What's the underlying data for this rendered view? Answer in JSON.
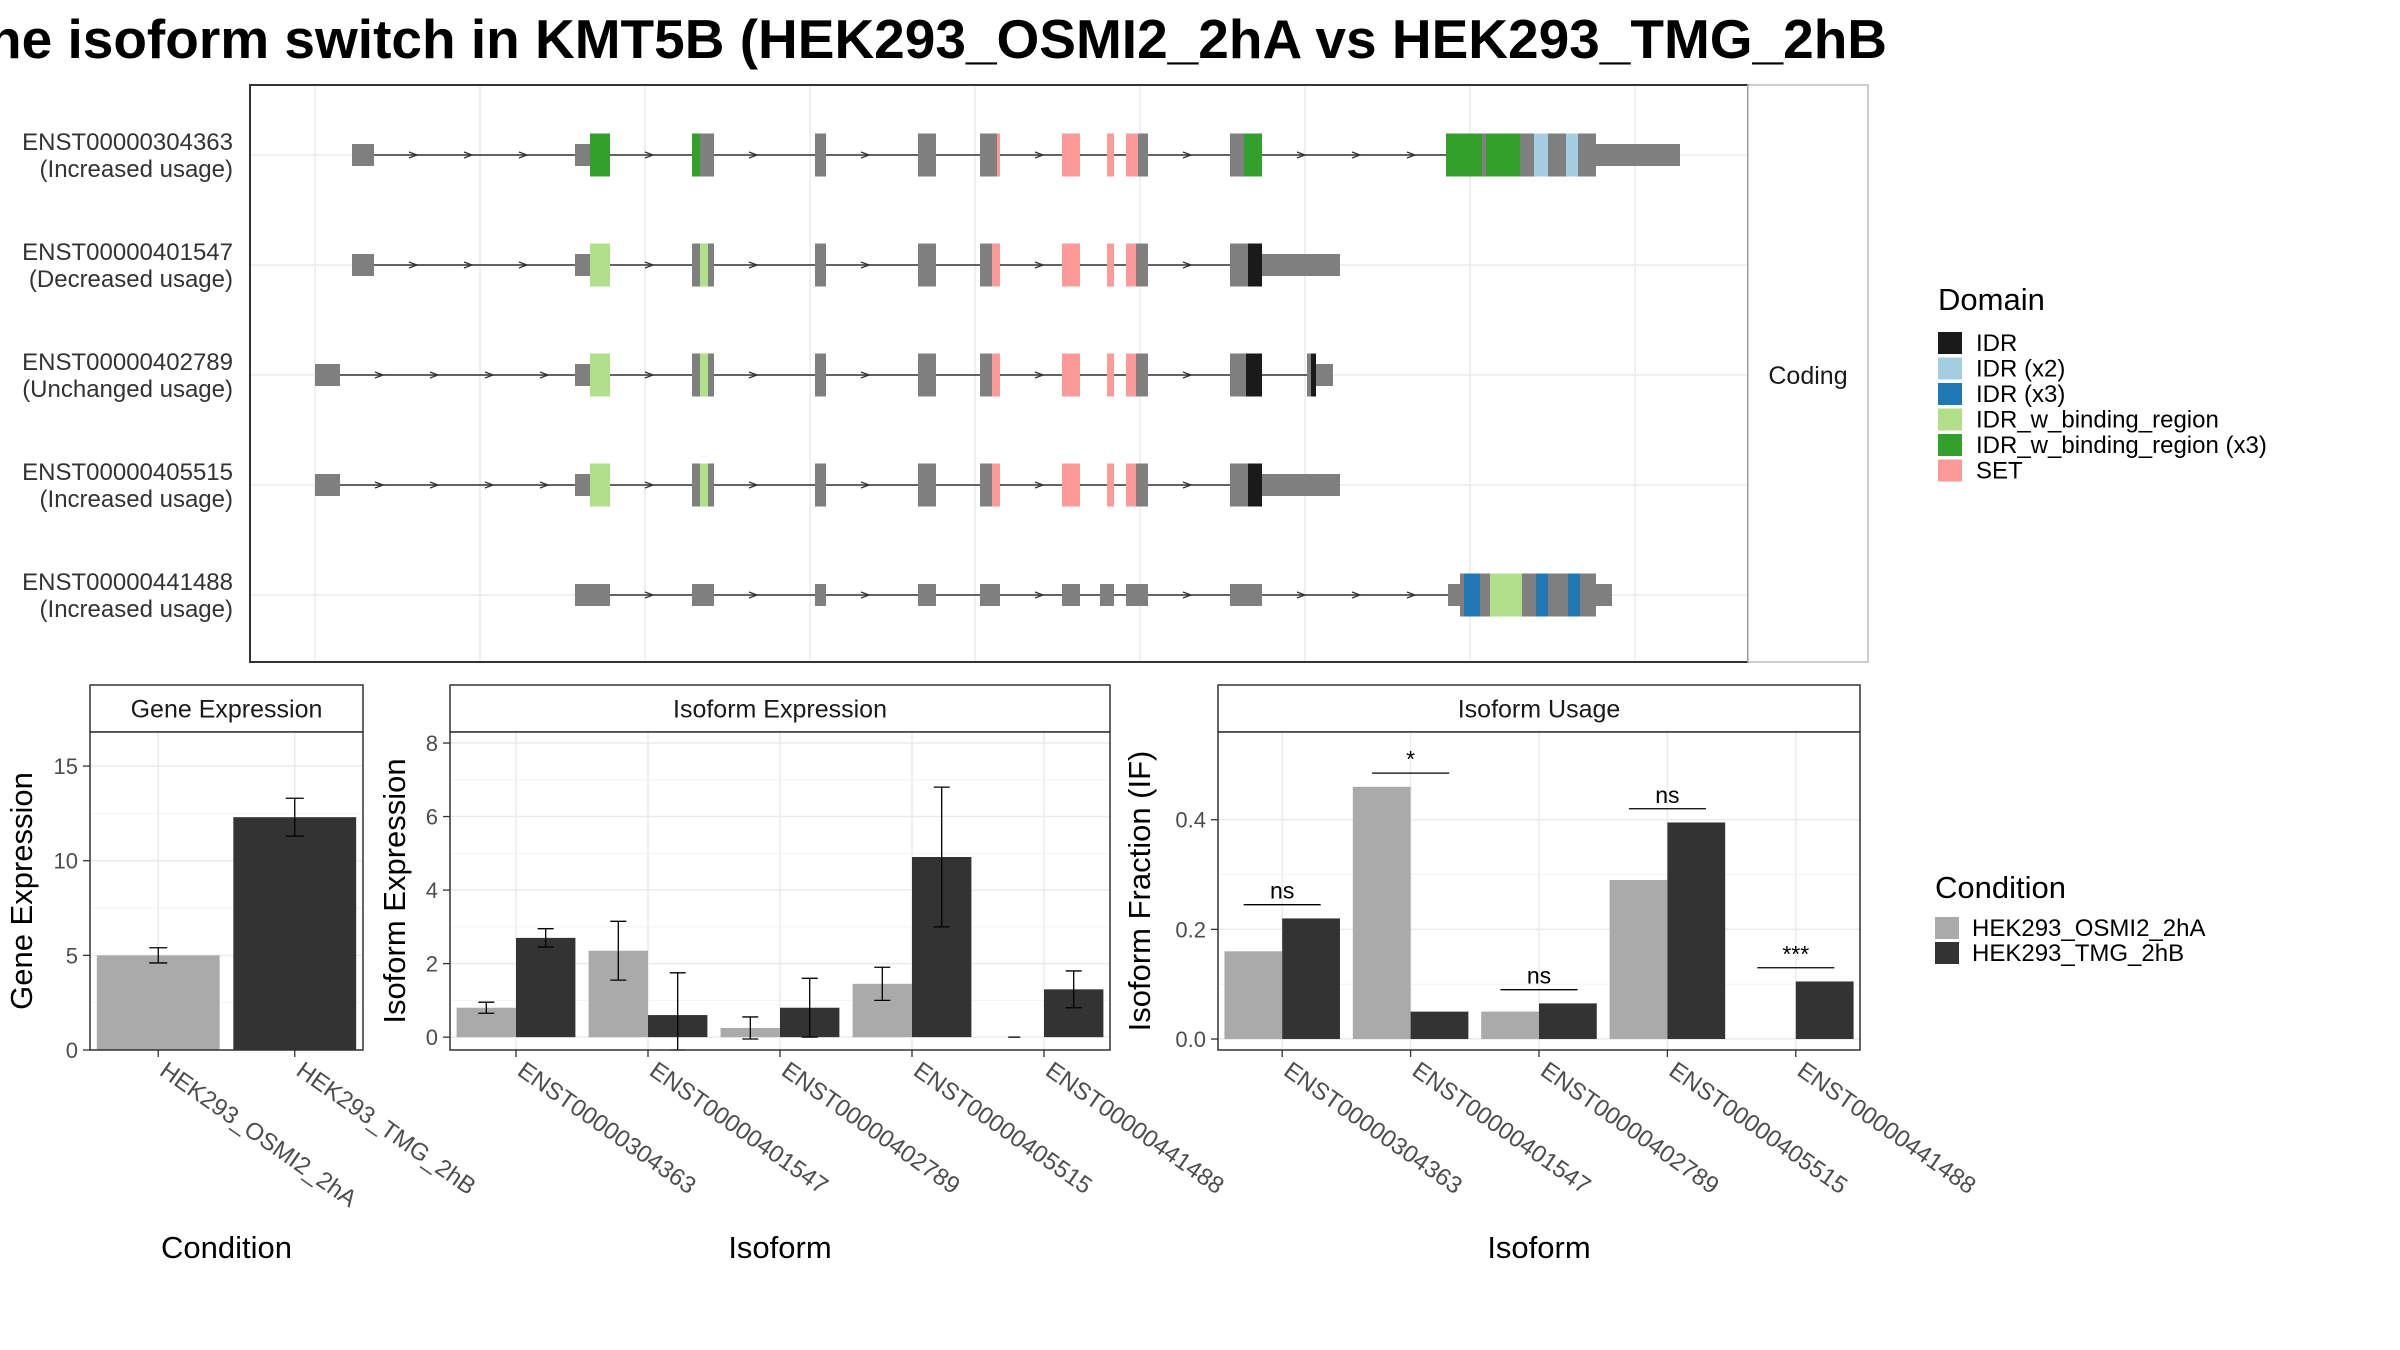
{
  "title": "he isoform switch in KMT5B (HEK293_OSMI2_2hA vs HEK293_TMG_2hB",
  "transcripts": {
    "facet_label": "Coding",
    "rows": [
      {
        "id": "ENST00000304363",
        "usage": "(Increased usage)"
      },
      {
        "id": "ENST00000401547",
        "usage": "(Decreased usage)"
      },
      {
        "id": "ENST00000402789",
        "usage": "(Unchanged usage)"
      },
      {
        "id": "ENST00000405515",
        "usage": "(Increased usage)"
      },
      {
        "id": "ENST00000441488",
        "usage": "(Increased usage)"
      }
    ]
  },
  "domain_legend": {
    "title": "Domain",
    "items": [
      {
        "label": "IDR",
        "color": "#1a1a1a"
      },
      {
        "label": "IDR (x2)",
        "color": "#a6cee3"
      },
      {
        "label": "IDR (x3)",
        "color": "#1f78b4"
      },
      {
        "label": "IDR_w_binding_region",
        "color": "#b2df8a"
      },
      {
        "label": "IDR_w_binding_region (x3)",
        "color": "#33a02c"
      },
      {
        "label": "SET",
        "color": "#fb9a99"
      }
    ]
  },
  "condition_legend": {
    "title": "Condition",
    "items": [
      {
        "label": "HEK293_OSMI2_2hA",
        "color": "#aaaaaa"
      },
      {
        "label": "HEK293_TMG_2hB",
        "color": "#333333"
      }
    ]
  },
  "chart_data": [
    {
      "type": "bar",
      "panel": "Gene Expression",
      "ylabel": "Gene Expression",
      "xlabel": "Condition",
      "categories": [
        "HEK293_OSMI2_2hA",
        "HEK293_TMG_2hB"
      ],
      "values": [
        5.0,
        12.3
      ],
      "errors": [
        0.4,
        1.0
      ],
      "ylim": [
        0,
        16.8
      ],
      "yticks": [
        0,
        5,
        10,
        15
      ]
    },
    {
      "type": "bar",
      "panel": "Isoform Expression",
      "ylabel": "Isoform Expression",
      "xlabel": "Isoform",
      "categories": [
        "ENST00000304363",
        "ENST00000401547",
        "ENST00000402789",
        "ENST00000405515",
        "ENST00000441488"
      ],
      "series": [
        {
          "name": "HEK293_OSMI2_2hA",
          "values": [
            0.8,
            2.35,
            0.25,
            1.45,
            0.0
          ],
          "errors": [
            0.15,
            0.8,
            0.3,
            0.45,
            0.0
          ]
        },
        {
          "name": "HEK293_TMG_2hB",
          "values": [
            2.7,
            0.6,
            0.8,
            4.9,
            1.3
          ],
          "errors": [
            0.25,
            1.15,
            0.8,
            1.9,
            0.5
          ]
        }
      ],
      "ylim": [
        -0.35,
        8.3
      ],
      "yticks": [
        0,
        2,
        4,
        6,
        8
      ]
    },
    {
      "type": "bar",
      "panel": "Isoform Usage",
      "ylabel": "Isoform Fraction (IF)",
      "xlabel": "Isoform",
      "categories": [
        "ENST00000304363",
        "ENST00000401547",
        "ENST00000402789",
        "ENST00000405515",
        "ENST00000441488"
      ],
      "series": [
        {
          "name": "HEK293_OSMI2_2hA",
          "values": [
            0.16,
            0.46,
            0.05,
            0.29,
            0.0
          ]
        },
        {
          "name": "HEK293_TMG_2hB",
          "values": [
            0.22,
            0.05,
            0.065,
            0.395,
            0.105
          ]
        }
      ],
      "significance": [
        "ns",
        "*",
        "ns",
        "ns",
        "***"
      ],
      "ylim": [
        -0.02,
        0.56
      ],
      "yticks": [
        0.0,
        0.2,
        0.4
      ]
    }
  ]
}
